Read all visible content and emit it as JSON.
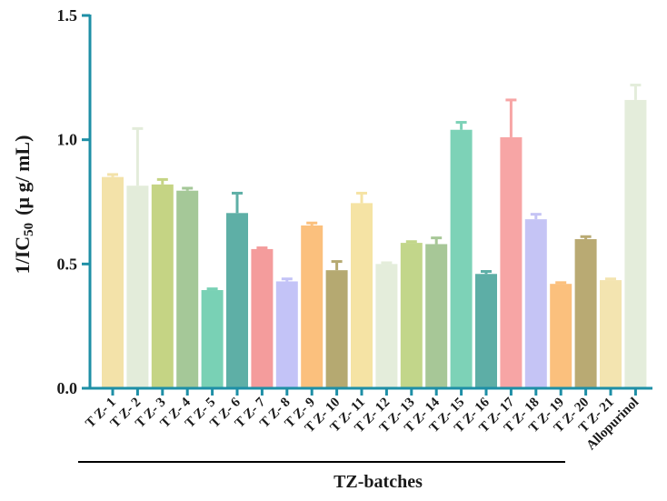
{
  "chart_data": {
    "type": "bar",
    "title": "",
    "ylabel": "1/IC50 (μg/mL)",
    "ylabel_main": "1/IC",
    "ylabel_sub": "50",
    "ylabel_unit": "(μ g/ mL)",
    "xlabel": "",
    "ylim": [
      0,
      1.5
    ],
    "yticks": [
      "0.0",
      "0.5",
      "1.0",
      "1.5"
    ],
    "ytick_values": [
      0,
      0.5,
      1.0,
      1.5
    ],
    "categories": [
      "T Z- 1",
      "T Z- 2",
      "T Z- 3",
      "T Z- 4",
      "T Z- 5",
      "T Z- 6",
      "T Z- 7",
      "T Z- 8",
      "T Z- 9",
      "T Z- 10",
      "T Z- 11",
      "T Z- 12",
      "T Z- 13",
      "T Z- 14",
      "T Z- 15",
      "T Z- 16",
      "T Z- 17",
      "T Z- 18",
      "T Z- 19",
      "T Z- 20",
      "T Z- 21",
      "Allopurinol"
    ],
    "values": [
      0.85,
      0.815,
      0.82,
      0.795,
      0.395,
      0.705,
      0.56,
      0.43,
      0.655,
      0.475,
      0.745,
      0.5,
      0.585,
      0.58,
      1.04,
      0.46,
      1.01,
      0.68,
      0.42,
      0.6,
      0.435,
      1.16
    ],
    "errors": [
      0.01,
      0.23,
      0.02,
      0.01,
      0.005,
      0.08,
      0.005,
      0.01,
      0.01,
      0.035,
      0.04,
      0.005,
      0.005,
      0.025,
      0.03,
      0.01,
      0.15,
      0.02,
      0.005,
      0.01,
      0.005,
      0.06
    ],
    "colors": [
      "#F3E2A9",
      "#E3ECDA",
      "#C5D484",
      "#A5C898",
      "#79D1B5",
      "#5EAFA6",
      "#F49C9C",
      "#C3C3F7",
      "#FBC07D",
      "#B5A971",
      "#F5E3A4",
      "#E4EDDB",
      "#C2D68A",
      "#A7C797",
      "#7DD2B7",
      "#5DAEA6",
      "#F7A5A5",
      "#C5C4F5",
      "#FBC07D",
      "#B9AA73",
      "#F3E4B0",
      "#E4EDDB"
    ],
    "group_label": "TZ-batches",
    "axis_color": "#1E8FA6"
  }
}
